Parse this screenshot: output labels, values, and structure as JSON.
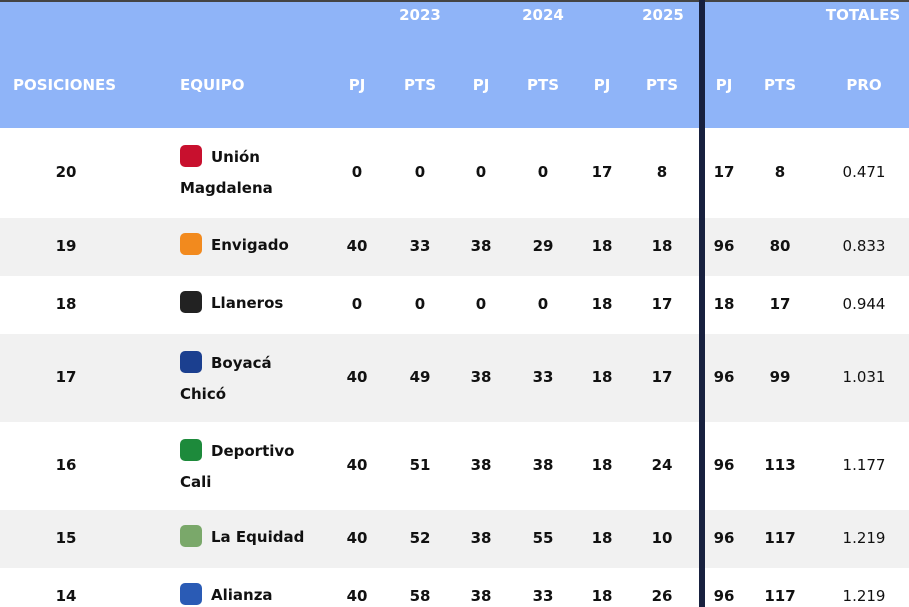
{
  "header": {
    "years": [
      "2023",
      "2024",
      "2025",
      "TOTALES"
    ],
    "columns": [
      "POSICIONES",
      "EQUIPO",
      "PJ",
      "PTS",
      "PJ",
      "PTS",
      "PJ",
      "PTS",
      "PJ",
      "PTS",
      "PRO"
    ]
  },
  "rows": [
    {
      "pos": "20",
      "team": "Unión Magdalena",
      "values": [
        "0",
        "0",
        "0",
        "0",
        "17",
        "8",
        "17",
        "8",
        "0.471"
      ]
    },
    {
      "pos": "19",
      "team": "Envigado",
      "values": [
        "40",
        "33",
        "38",
        "29",
        "18",
        "18",
        "96",
        "80",
        "0.833"
      ]
    },
    {
      "pos": "18",
      "team": "Llaneros",
      "values": [
        "0",
        "0",
        "0",
        "0",
        "18",
        "17",
        "18",
        "17",
        "0.944"
      ]
    },
    {
      "pos": "17",
      "team": "Boyacá Chicó",
      "values": [
        "40",
        "49",
        "38",
        "33",
        "18",
        "17",
        "96",
        "99",
        "1.031"
      ]
    },
    {
      "pos": "16",
      "team": "Deportivo Cali",
      "values": [
        "40",
        "51",
        "38",
        "38",
        "18",
        "24",
        "96",
        "113",
        "1.177"
      ]
    },
    {
      "pos": "15",
      "team": "La Equidad",
      "values": [
        "40",
        "52",
        "38",
        "55",
        "18",
        "10",
        "96",
        "117",
        "1.219"
      ]
    },
    {
      "pos": "14",
      "team": "Alianza",
      "values": [
        "40",
        "58",
        "38",
        "33",
        "18",
        "26",
        "96",
        "117",
        "1.219"
      ]
    }
  ]
}
